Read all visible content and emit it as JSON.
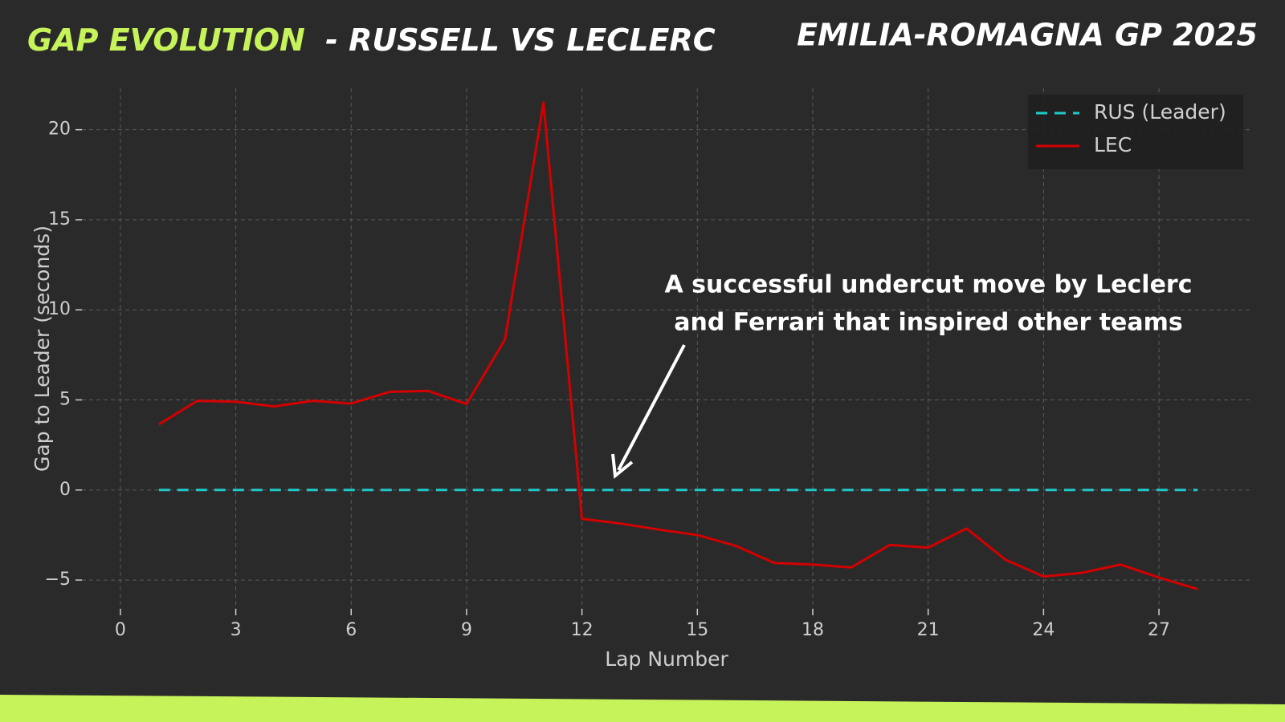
{
  "chart_data": {
    "type": "line",
    "title_highlight": "GAP EVOLUTION",
    "title": "- RUSSELL VS LECLERC",
    "subtitle": "EMILIA-ROMAGNA GP 2025",
    "x_label": "Lap Number",
    "y_label": "Gap to Leader (seconds)",
    "annotation": [
      "A successful undercut move by Leclerc",
      "and Ferrari that inspired other teams"
    ],
    "x": [
      1,
      2,
      3,
      4,
      5,
      6,
      7,
      8,
      9,
      10,
      11,
      12,
      13,
      14,
      15,
      16,
      17,
      18,
      19,
      20,
      21,
      22,
      23,
      24,
      25,
      26,
      27,
      28
    ],
    "series": [
      {
        "name": "RUS (Leader)",
        "color": "#1fc9c9",
        "linestyle": "dashed",
        "values": [
          0,
          0,
          0,
          0,
          0,
          0,
          0,
          0,
          0,
          0,
          0,
          0,
          0,
          0,
          0,
          0,
          0,
          0,
          0,
          0,
          0,
          0,
          0,
          0,
          0,
          0,
          0,
          0
        ]
      },
      {
        "name": "LEC",
        "color": "#d40000",
        "linestyle": "solid",
        "values": [
          3.64,
          4.95,
          4.9,
          4.64,
          4.95,
          4.8,
          5.45,
          5.5,
          4.77,
          8.36,
          21.5,
          -1.6,
          -1.86,
          -2.2,
          -2.5,
          -3.1,
          -4.05,
          -4.14,
          -4.3,
          -3.05,
          -3.2,
          -2.14,
          -3.86,
          -4.8,
          -4.6,
          -4.14,
          -4.86,
          -5.5
        ]
      }
    ],
    "xlim": [
      -1,
      29.4
    ],
    "ylim": [
      -6.6,
      22.3
    ],
    "xticks": [
      0,
      3,
      6,
      9,
      12,
      15,
      18,
      21,
      24,
      27
    ],
    "yticks": [
      20,
      15,
      10,
      5,
      0,
      {
        "value": -5,
        "label": "−5"
      }
    ],
    "grid": true,
    "legend": "upper right"
  }
}
